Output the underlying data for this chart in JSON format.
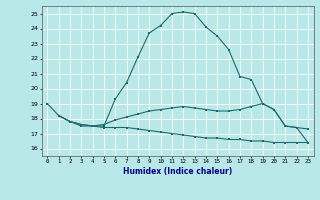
{
  "xlabel": "Humidex (Indice chaleur)",
  "background_color": "#b8e8e8",
  "grid_color": "#ffffff",
  "line_color": "#1e6b6b",
  "xlim": [
    -0.5,
    23.5
  ],
  "ylim": [
    15.5,
    25.5
  ],
  "yticks": [
    16,
    17,
    18,
    19,
    20,
    21,
    22,
    23,
    24,
    25
  ],
  "xticks": [
    0,
    1,
    2,
    3,
    4,
    5,
    6,
    7,
    8,
    9,
    10,
    11,
    12,
    13,
    14,
    15,
    16,
    17,
    18,
    19,
    20,
    21,
    22,
    23
  ],
  "curve1_x": [
    0,
    1,
    2,
    3,
    4,
    5,
    6,
    7,
    8,
    9,
    10,
    11,
    12,
    13,
    14,
    15,
    16,
    17,
    18,
    19,
    20,
    21,
    22,
    23
  ],
  "curve1_y": [
    19.0,
    18.2,
    17.8,
    17.6,
    17.5,
    17.5,
    19.3,
    20.4,
    22.1,
    23.7,
    24.2,
    25.0,
    25.1,
    25.0,
    24.1,
    23.5,
    22.6,
    20.8,
    20.6,
    19.0,
    18.6,
    17.5,
    17.4,
    16.4
  ],
  "curve2_x": [
    1,
    2,
    3,
    4,
    5,
    6,
    7,
    8,
    9,
    10,
    11,
    12,
    13,
    14,
    15,
    16,
    17,
    18,
    19,
    20,
    21,
    22,
    23
  ],
  "curve2_y": [
    18.2,
    17.8,
    17.6,
    17.5,
    17.6,
    17.9,
    18.1,
    18.3,
    18.5,
    18.6,
    18.7,
    18.8,
    18.7,
    18.6,
    18.5,
    18.5,
    18.6,
    18.8,
    19.0,
    18.6,
    17.5,
    17.4,
    17.3
  ],
  "curve3_x": [
    1,
    2,
    3,
    4,
    5,
    6,
    7,
    8,
    9,
    10,
    11,
    12,
    13,
    14,
    15,
    16,
    17,
    18,
    19,
    20,
    21,
    22,
    23
  ],
  "curve3_y": [
    18.2,
    17.8,
    17.5,
    17.5,
    17.4,
    17.4,
    17.4,
    17.3,
    17.2,
    17.1,
    17.0,
    16.9,
    16.8,
    16.7,
    16.7,
    16.6,
    16.6,
    16.5,
    16.5,
    16.4,
    16.4,
    16.4,
    16.4
  ]
}
